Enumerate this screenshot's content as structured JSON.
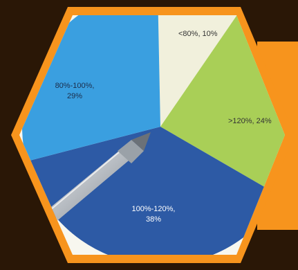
{
  "colors": {
    "background": "#2a1706",
    "frame_orange": "#f7941d",
    "photo_white": "#f7f7ef",
    "slice_cream": "#f1f0dc",
    "slice_green": "#a9cf57",
    "slice_dark_blue": "#2d5aa5",
    "slice_light_blue": "#3a9fe0"
  },
  "chart_data": {
    "type": "pie",
    "slices": [
      {
        "label": "<80%",
        "value": 10,
        "text": "<80%, 10%",
        "color": "#f1f0dc"
      },
      {
        "label": ">120%",
        "value": 24,
        "text": ">120%, 24%",
        "color": "#a9cf57"
      },
      {
        "label": "100%-120%",
        "value": 38,
        "text_line1": "100%-120%,",
        "text_line2": "38%",
        "color": "#2d5aa5"
      },
      {
        "label": "80%-100%",
        "value": 29,
        "text_line1": "80%-100%,",
        "text_line2": "29%",
        "color": "#3a9fe0"
      }
    ]
  },
  "icons": {
    "pen": "ballpoint-pen-icon"
  }
}
